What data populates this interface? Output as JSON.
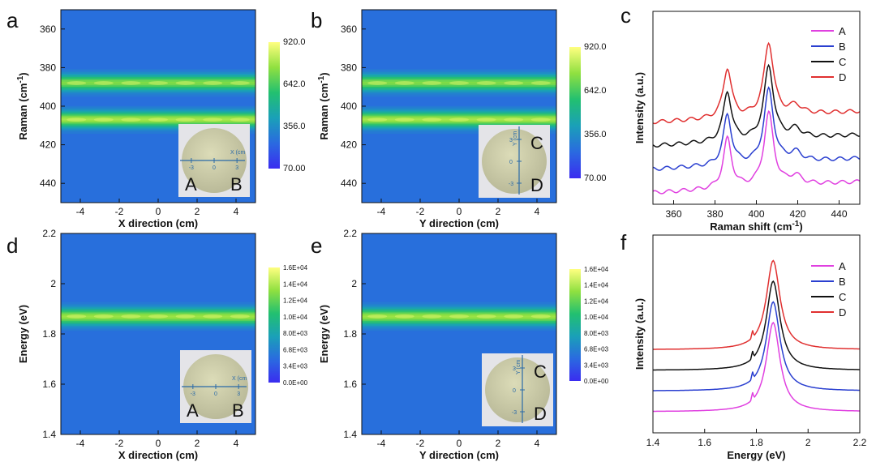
{
  "chart_data": [
    {
      "id": "a",
      "panel_label": "a",
      "type": "heatmap",
      "xlabel": "X direction (cm)",
      "ylabel": "Raman (cm",
      "ylabel_sup": "-1",
      "ylabel_tail": ")",
      "xlim": [
        -5,
        5
      ],
      "ylim": [
        350,
        450
      ],
      "y_reversed": true,
      "xticks": [
        -4,
        -2,
        0,
        2,
        4
      ],
      "yticks": [
        360,
        380,
        400,
        420,
        440
      ],
      "bands": [
        388,
        407
      ],
      "colorbar": {
        "ticks": [
          "920.0",
          "642.0",
          "356.0",
          "70.00"
        ],
        "min": 70,
        "max": 920
      },
      "inset": {
        "labels": [
          "A",
          "B"
        ],
        "axis_label": "X (cm",
        "axis_ticks": [
          "-3",
          "0",
          "3"
        ],
        "orientation": "horizontal"
      }
    },
    {
      "id": "b",
      "panel_label": "b",
      "type": "heatmap",
      "xlabel": "Y direction (cm)",
      "ylabel": "Raman (cm",
      "ylabel_sup": "-1",
      "ylabel_tail": ")",
      "xlim": [
        -5,
        5
      ],
      "ylim": [
        350,
        450
      ],
      "y_reversed": true,
      "xticks": [
        -4,
        -2,
        0,
        2,
        4
      ],
      "yticks": [
        360,
        380,
        400,
        420,
        440
      ],
      "bands": [
        388,
        407
      ],
      "colorbar": {
        "ticks": [
          "920.0",
          "642.0",
          "356.0",
          "70.00"
        ],
        "min": 70,
        "max": 920
      },
      "inset": {
        "labels": [
          "C",
          "D"
        ],
        "axis_label": "Y (cm",
        "axis_ticks": [
          "3",
          "0",
          "-3"
        ],
        "orientation": "vertical"
      }
    },
    {
      "id": "c",
      "panel_label": "c",
      "type": "line",
      "xlabel": "Raman shift (cm",
      "xlabel_sup": "-1",
      "xlabel_tail": ")",
      "ylabel": "Intensity (a.u.)",
      "xlim": [
        350,
        450
      ],
      "xticks": [
        360,
        380,
        400,
        420,
        440
      ],
      "peaks": [
        386,
        406
      ],
      "legend_position": "top-right",
      "series": [
        {
          "name": "A",
          "color": "#e040e0",
          "offset": 3.0
        },
        {
          "name": "B",
          "color": "#2a3fd0",
          "offset": 2.0
        },
        {
          "name": "C",
          "color": "#111111",
          "offset": 1.0
        },
        {
          "name": "D",
          "color": "#e03030",
          "offset": 0.0
        }
      ]
    },
    {
      "id": "d",
      "panel_label": "d",
      "type": "heatmap",
      "xlabel": "X direction (cm)",
      "ylabel": "Energy (eV)",
      "xlim": [
        -5,
        5
      ],
      "ylim": [
        1.4,
        2.2
      ],
      "y_reversed": false,
      "xticks": [
        -4,
        -2,
        0,
        2,
        4
      ],
      "yticks": [
        1.4,
        1.6,
        1.8,
        2.0,
        2.2
      ],
      "bands": [
        1.87
      ],
      "colorbar": {
        "ticks": [
          "1.6E+04",
          "1.4E+04",
          "1.2E+04",
          "1.0E+04",
          "8.0E+03",
          "6.8E+03",
          "3.4E+03",
          "0.0E+00"
        ],
        "min": 0,
        "max": 16000
      },
      "inset": {
        "labels": [
          "A",
          "B"
        ],
        "axis_label": "X (cm",
        "axis_ticks": [
          "-3",
          "0",
          "3"
        ],
        "orientation": "horizontal"
      }
    },
    {
      "id": "e",
      "panel_label": "e",
      "type": "heatmap",
      "xlabel": "Y direction (cm)",
      "ylabel": "Energy (eV)",
      "xlim": [
        -5,
        5
      ],
      "ylim": [
        1.4,
        2.2
      ],
      "y_reversed": false,
      "xticks": [
        -4,
        -2,
        0,
        2,
        4
      ],
      "yticks": [
        1.4,
        1.6,
        1.8,
        2.0,
        2.2
      ],
      "bands": [
        1.87
      ],
      "colorbar": {
        "ticks": [
          "1.6E+04",
          "1.4E+04",
          "1.2E+04",
          "1.0E+04",
          "8.0E+03",
          "6.8E+03",
          "3.4E+03",
          "0.0E+00"
        ],
        "min": 0,
        "max": 16000
      },
      "inset": {
        "labels": [
          "C",
          "D"
        ],
        "axis_label": "Y (cm",
        "axis_ticks": [
          "3",
          "0",
          "-3"
        ],
        "orientation": "vertical"
      }
    },
    {
      "id": "f",
      "panel_label": "f",
      "type": "line",
      "xlabel": "Energy (eV)",
      "ylabel": "Intensity (a.u.)",
      "xlim": [
        1.4,
        2.2
      ],
      "xticks": [
        1.4,
        1.6,
        1.8,
        2.0,
        2.2
      ],
      "peaks": [
        1.865
      ],
      "legend_position": "top-right",
      "series": [
        {
          "name": "A",
          "color": "#e040e0",
          "offset": 3.0
        },
        {
          "name": "B",
          "color": "#2a3fd0",
          "offset": 2.0
        },
        {
          "name": "C",
          "color": "#111111",
          "offset": 1.0
        },
        {
          "name": "D",
          "color": "#e03030",
          "offset": 0.0
        }
      ]
    }
  ]
}
